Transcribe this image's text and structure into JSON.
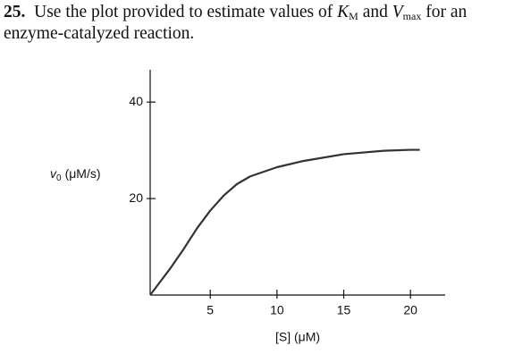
{
  "question": {
    "number": "25.",
    "text_1": "Use the plot provided to estimate values of ",
    "symbol_1": "K",
    "subscript_1": "M",
    "text_2": " and ",
    "symbol_2": "V",
    "subscript_2": "max",
    "text_3": " for an enzyme-catalyzed reaction."
  },
  "chart_data": {
    "type": "line",
    "x_label": "[S] (μM)",
    "y_label": {
      "symbol": "v",
      "subscript": "0",
      "unit": "(μM/s)"
    },
    "xlim": [
      0.5,
      22.6
    ],
    "ylim": [
      0,
      46.7
    ],
    "xticks": [
      5,
      10,
      15,
      20
    ],
    "yticks": [
      20,
      40
    ],
    "series": [
      {
        "color": "#333333",
        "x": [
          0.5,
          2,
          3,
          4,
          5,
          6,
          7,
          8,
          10,
          12,
          15,
          18,
          20,
          20.7
        ],
        "values": [
          0,
          5.5,
          9.5,
          13.8,
          17.5,
          20.6,
          23,
          24.6,
          26.5,
          27.8,
          29.2,
          29.9,
          30.1,
          30.1
        ]
      }
    ]
  }
}
